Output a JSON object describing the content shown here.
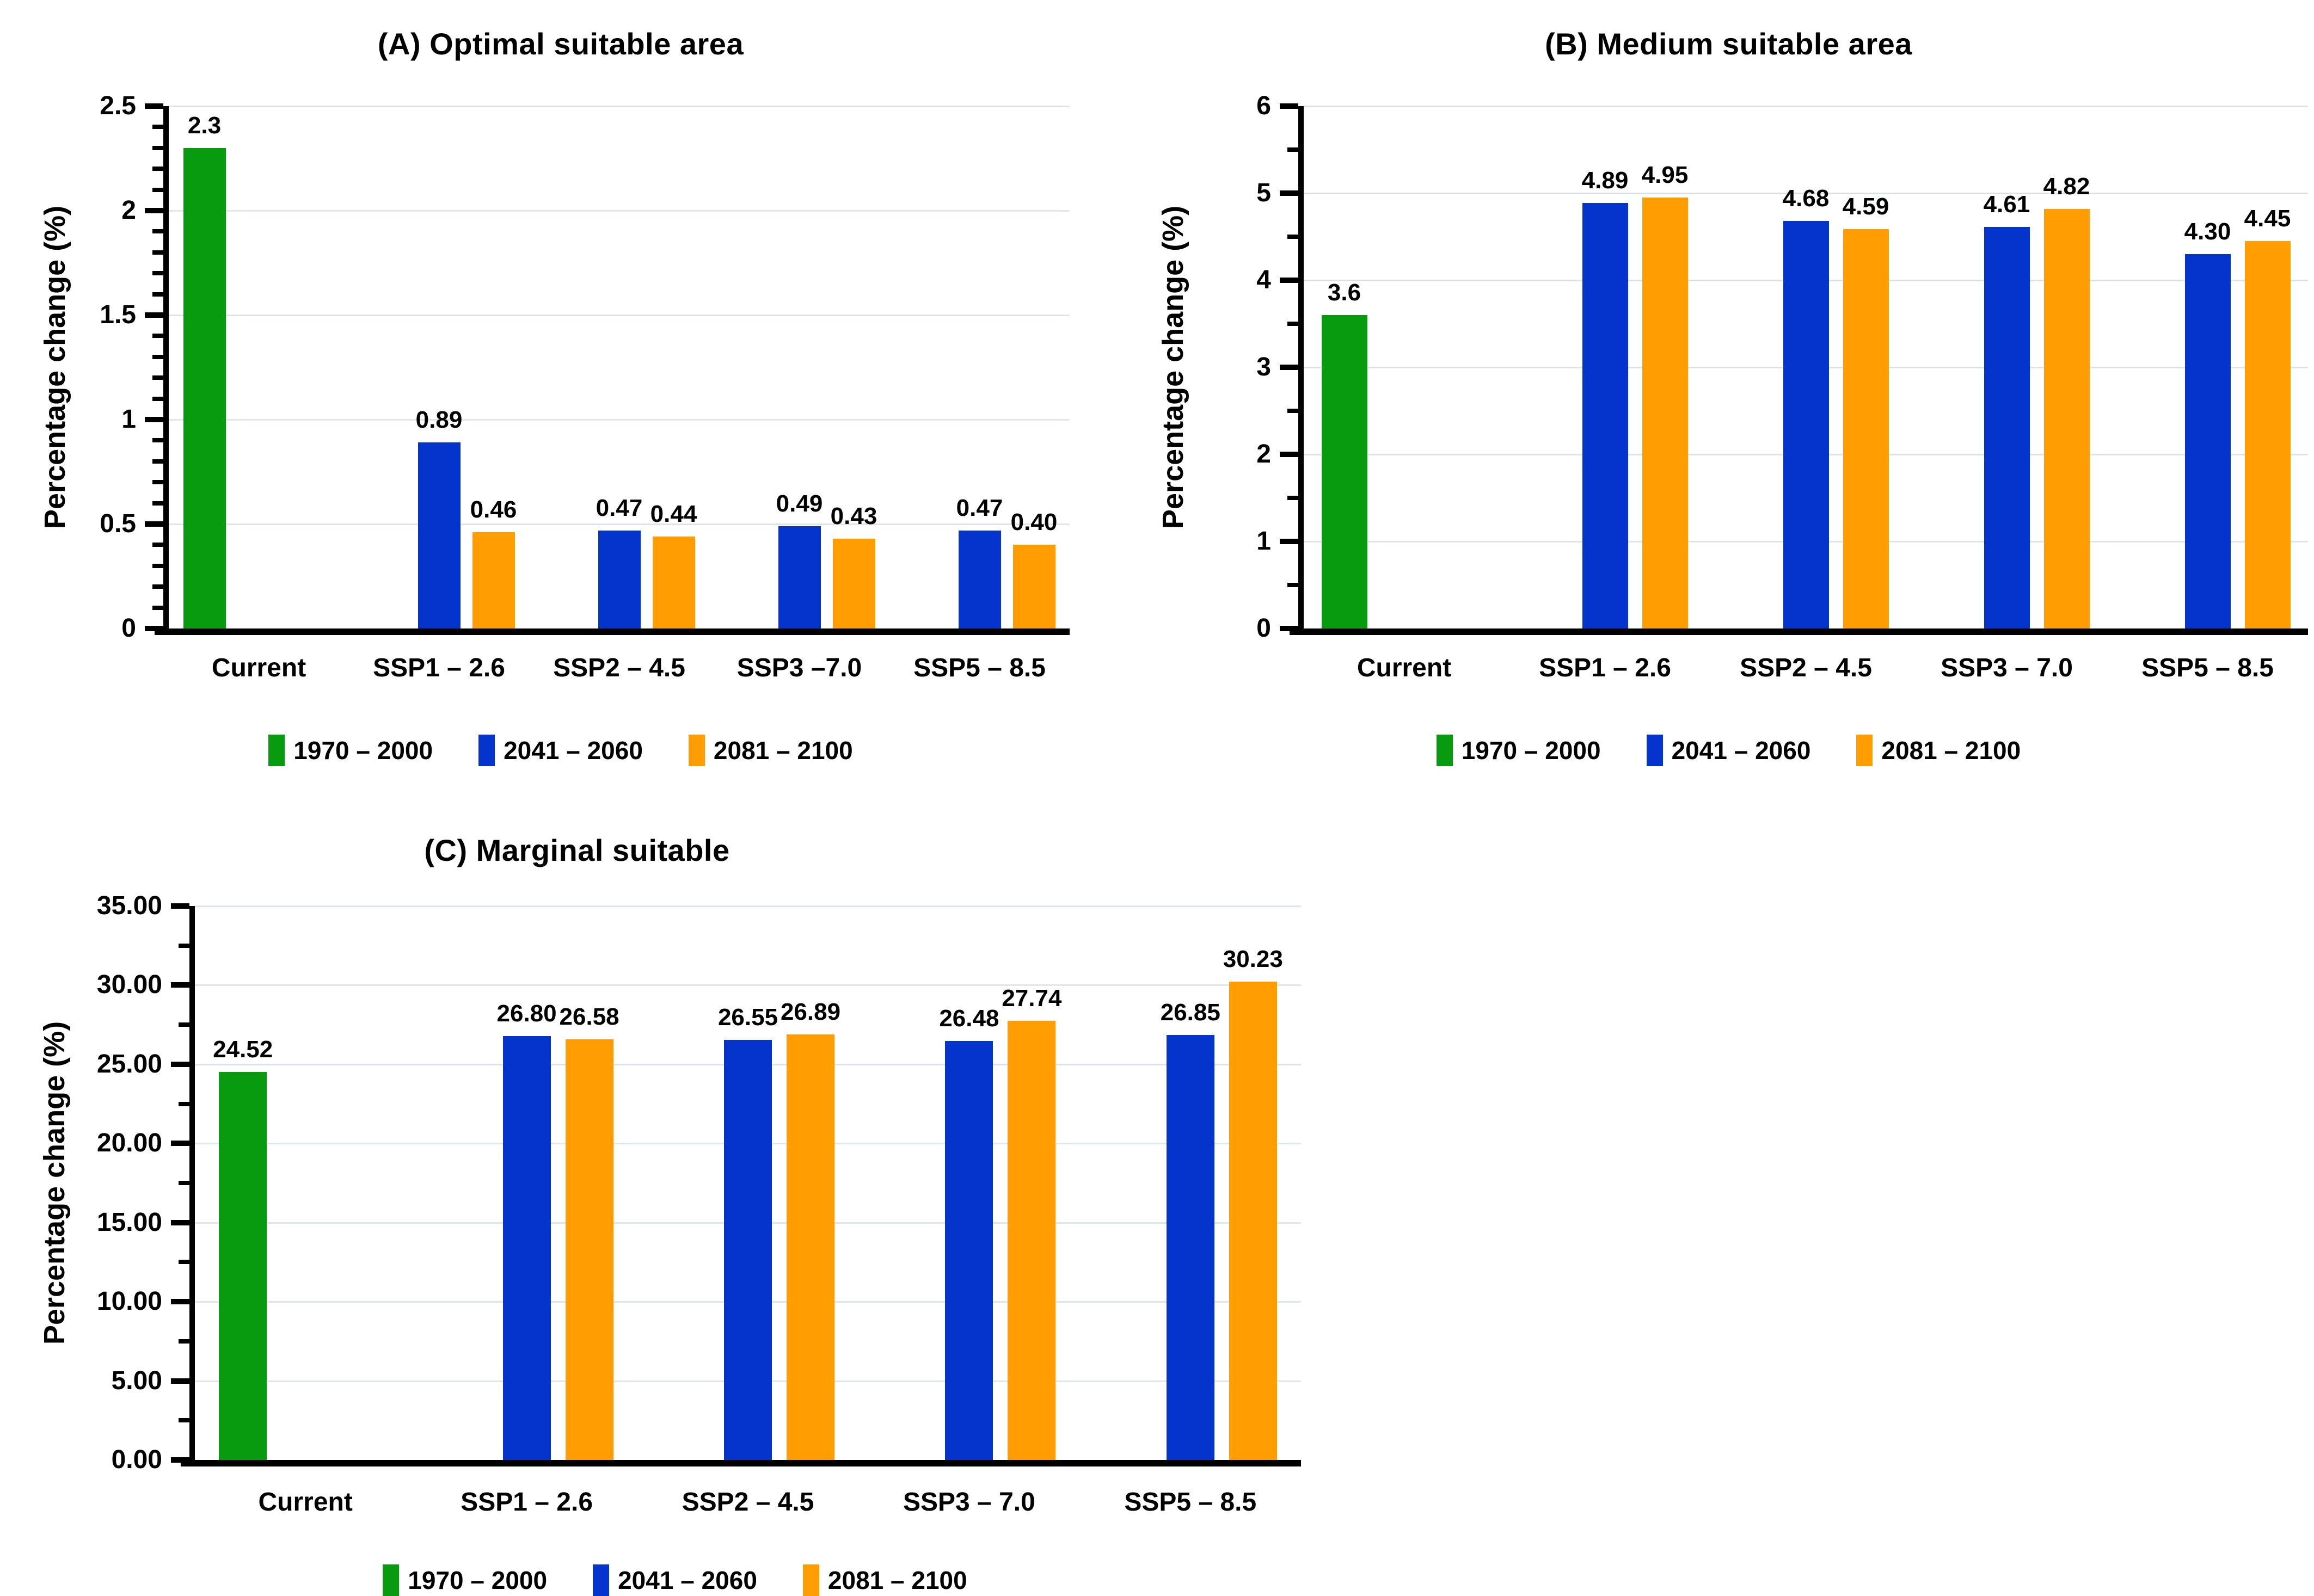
{
  "chart_data": [
    {
      "id": "A",
      "type": "bar",
      "title": "(A) Optimal suitable area",
      "ylabel": "Percentage change (%)",
      "ylim": [
        0,
        2.5
      ],
      "grid": true,
      "legend_position": "bottom",
      "yticks": [
        "2.5",
        "2",
        "1.5",
        "1",
        "0.5",
        "0"
      ],
      "minor_ticks_per_interval": 4,
      "categories": [
        "Current",
        "SSP1 – 2.6",
        "SSP2 – 4.5",
        "SSP3 –7.0",
        "SSP5 – 8.5"
      ],
      "series": [
        {
          "name": "1970 – 2000",
          "color": "#089B10",
          "values": [
            2.3,
            null,
            null,
            null,
            null
          ],
          "labels": [
            "2.3",
            "",
            "",
            "",
            ""
          ]
        },
        {
          "name": "2041 – 2060",
          "color": "#0534CD",
          "values": [
            null,
            0.89,
            0.47,
            0.49,
            0.47
          ],
          "labels": [
            "",
            "0.89",
            "0.47",
            "0.49",
            "0.47"
          ]
        },
        {
          "name": "2081 – 2100",
          "color": "#FF9D02",
          "values": [
            null,
            0.46,
            0.44,
            0.43,
            0.4
          ],
          "labels": [
            "",
            "0.46",
            "0.44",
            "0.43",
            "0.40"
          ]
        }
      ]
    },
    {
      "id": "B",
      "type": "bar",
      "title": "(B) Medium suitable area",
      "ylabel": "Percentage change (%)",
      "ylim": [
        0,
        6
      ],
      "grid": true,
      "legend_position": "bottom",
      "yticks": [
        "6",
        "5",
        "4",
        "3",
        "2",
        "1",
        "0"
      ],
      "minor_ticks_per_interval": 1,
      "categories": [
        "Current",
        "SSP1 – 2.6",
        "SSP2 – 4.5",
        "SSP3 – 7.0",
        "SSP5 – 8.5"
      ],
      "series": [
        {
          "name": "1970 – 2000",
          "color": "#089B10",
          "values": [
            3.6,
            null,
            null,
            null,
            null
          ],
          "labels": [
            "3.6",
            "",
            "",
            "",
            ""
          ]
        },
        {
          "name": "2041 – 2060",
          "color": "#0534CD",
          "values": [
            null,
            4.89,
            4.68,
            4.61,
            4.3
          ],
          "labels": [
            "",
            "4.89",
            "4.68",
            "4.61",
            "4.30"
          ]
        },
        {
          "name": "2081 – 2100",
          "color": "#FF9D02",
          "values": [
            null,
            4.95,
            4.59,
            4.82,
            4.45
          ],
          "labels": [
            "",
            "4.95",
            "4.59",
            "4.82",
            "4.45"
          ]
        }
      ]
    },
    {
      "id": "C",
      "type": "bar",
      "title": "(C) Marginal suitable",
      "ylabel": "Percentage change (%)",
      "ylim": [
        0,
        35
      ],
      "grid": true,
      "legend_position": "bottom",
      "yticks": [
        "35.00",
        "30.00",
        "25.00",
        "20.00",
        "15.00",
        "10.00",
        "5.00",
        "0.00"
      ],
      "minor_ticks_per_interval": 1,
      "categories": [
        "Current",
        "SSP1 – 2.6",
        "SSP2 – 4.5",
        "SSP3 – 7.0",
        "SSP5 – 8.5"
      ],
      "series": [
        {
          "name": "1970 – 2000",
          "color": "#089B10",
          "values": [
            24.52,
            null,
            null,
            null,
            null
          ],
          "labels": [
            "24.52",
            "",
            "",
            "",
            ""
          ]
        },
        {
          "name": "2041 – 2060",
          "color": "#0534CD",
          "values": [
            null,
            26.8,
            26.55,
            26.48,
            26.85
          ],
          "labels": [
            "",
            "26.80",
            "26.55",
            "26.48",
            "26.85"
          ]
        },
        {
          "name": "2081 – 2100",
          "color": "#FF9D02",
          "values": [
            null,
            26.58,
            26.89,
            27.74,
            30.23
          ],
          "labels": [
            "",
            "26.58",
            "26.89",
            "27.74",
            "30.23"
          ]
        }
      ]
    }
  ]
}
